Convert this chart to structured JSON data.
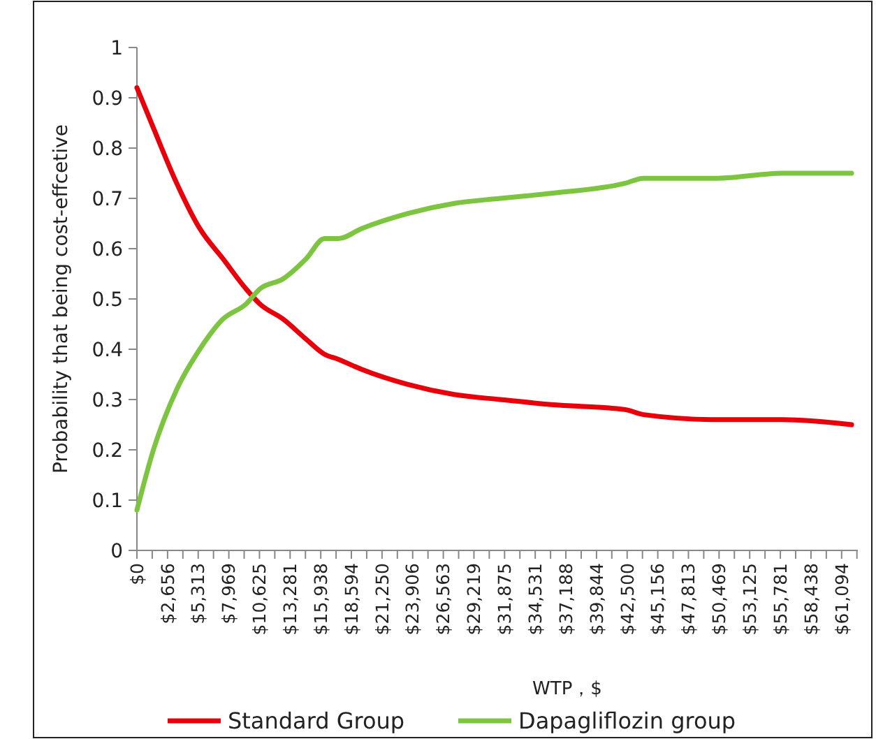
{
  "chart_data": {
    "type": "line",
    "xlabel": "WTP，$",
    "ylabel": "Probability that being cost-effcetive",
    "xlim": [
      0,
      62500
    ],
    "ylim": [
      0,
      1
    ],
    "yticks": [
      0,
      0.1,
      0.2,
      0.3,
      0.4,
      0.5,
      0.6,
      0.7,
      0.8,
      0.9,
      1
    ],
    "xticks": [
      {
        "value": 0,
        "label": "$0"
      },
      {
        "value": 1328.125,
        "label": null
      },
      {
        "value": 2656.25,
        "label": "$2,656"
      },
      {
        "value": 3984.375,
        "label": null
      },
      {
        "value": 5312.5,
        "label": "$5,313"
      },
      {
        "value": 6640.625,
        "label": null
      },
      {
        "value": 7968.75,
        "label": "$7,969"
      },
      {
        "value": 9296.875,
        "label": null
      },
      {
        "value": 10625,
        "label": "$10,625"
      },
      {
        "value": 11953.125,
        "label": null
      },
      {
        "value": 13281.25,
        "label": "$13,281"
      },
      {
        "value": 14609.375,
        "label": null
      },
      {
        "value": 15937.5,
        "label": "$15,938"
      },
      {
        "value": 17265.625,
        "label": null
      },
      {
        "value": 18593.75,
        "label": "$18,594"
      },
      {
        "value": 19921.875,
        "label": null
      },
      {
        "value": 21250,
        "label": "$21,250"
      },
      {
        "value": 22578.125,
        "label": null
      },
      {
        "value": 23906.25,
        "label": "$23,906"
      },
      {
        "value": 25234.375,
        "label": null
      },
      {
        "value": 26562.5,
        "label": "$26,563"
      },
      {
        "value": 27890.625,
        "label": null
      },
      {
        "value": 29218.75,
        "label": "$29,219"
      },
      {
        "value": 30546.875,
        "label": null
      },
      {
        "value": 31875,
        "label": "$31,875"
      },
      {
        "value": 33203.125,
        "label": null
      },
      {
        "value": 34531.25,
        "label": "$34,531"
      },
      {
        "value": 35859.375,
        "label": null
      },
      {
        "value": 37187.5,
        "label": "$37,188"
      },
      {
        "value": 38515.625,
        "label": null
      },
      {
        "value": 39843.75,
        "label": "$39,844"
      },
      {
        "value": 41171.875,
        "label": null
      },
      {
        "value": 42500,
        "label": "$42,500"
      },
      {
        "value": 43828.125,
        "label": null
      },
      {
        "value": 45156.25,
        "label": "$45,156"
      },
      {
        "value": 46484.375,
        "label": null
      },
      {
        "value": 47812.5,
        "label": "$47,813"
      },
      {
        "value": 49140.625,
        "label": null
      },
      {
        "value": 50468.75,
        "label": "$50,469"
      },
      {
        "value": 51796.875,
        "label": null
      },
      {
        "value": 53125,
        "label": "$53,125"
      },
      {
        "value": 54453.125,
        "label": null
      },
      {
        "value": 55781.25,
        "label": "$55,781"
      },
      {
        "value": 57109.375,
        "label": null
      },
      {
        "value": 58437.5,
        "label": "$58,438"
      },
      {
        "value": 59765.625,
        "label": null
      },
      {
        "value": 61093.75,
        "label": "$61,094"
      },
      {
        "value": 62421.875,
        "label": null
      }
    ],
    "x": [
      0,
      1430,
      3450,
      5450,
      7460,
      9460,
      10660,
      12670,
      14670,
      16270,
      17470,
      19480,
      23490,
      27500,
      31500,
      35920,
      42330,
      43930,
      50350,
      55950,
      61960
    ],
    "series": [
      {
        "name": "Standard Group",
        "color": "#e8000b",
        "values": [
          0.92,
          0.84,
          0.73,
          0.64,
          0.58,
          0.52,
          0.49,
          0.46,
          0.42,
          0.39,
          0.38,
          0.36,
          0.33,
          0.31,
          0.3,
          0.29,
          0.28,
          0.27,
          0.26,
          0.26,
          0.25
        ]
      },
      {
        "name": "Dapagliflozin group",
        "color": "#7dc540",
        "values": [
          0.08,
          0.2,
          0.32,
          0.4,
          0.46,
          0.49,
          0.52,
          0.54,
          0.58,
          0.62,
          0.62,
          0.64,
          0.67,
          0.69,
          0.7,
          0.71,
          0.73,
          0.74,
          0.74,
          0.75,
          0.75
        ]
      }
    ],
    "grid": false,
    "legend": "bottom",
    "marker": "none",
    "line_style": "solid"
  }
}
